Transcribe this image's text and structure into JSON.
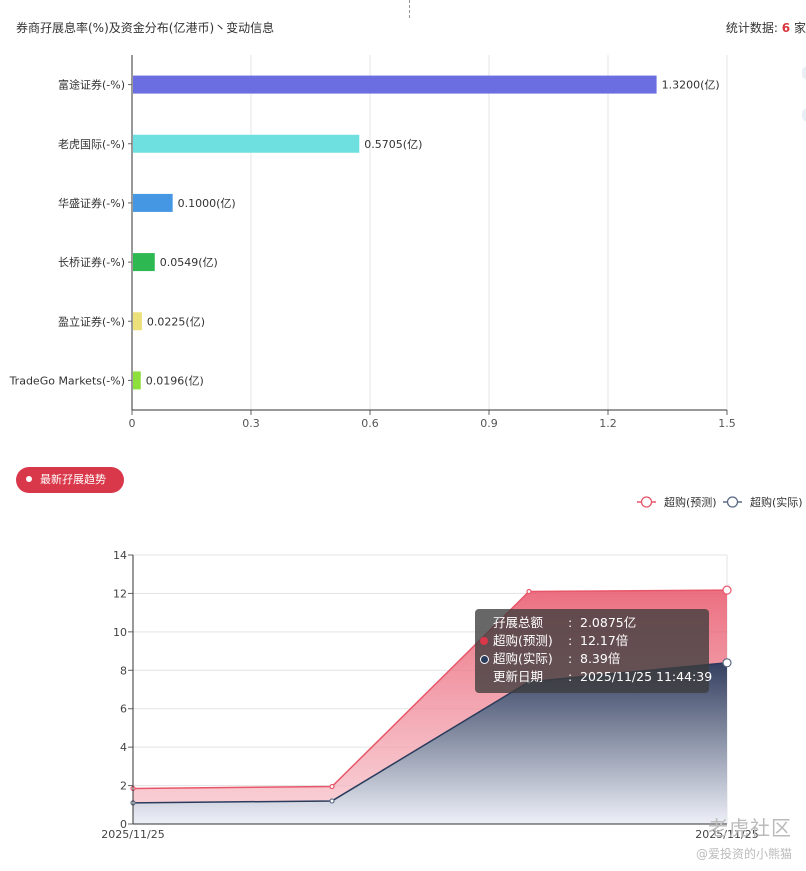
{
  "header": {
    "title": "券商孖展息率(%)及资金分布(亿港币)丶变动信息",
    "stats_prefix": "统计数据:",
    "stats_count": "6",
    "stats_suffix": "家"
  },
  "trend_badge": {
    "label": "最新孖展趋势"
  },
  "tooltip": {
    "rows": [
      {
        "key": "孖展总额",
        "value": "2.0875亿",
        "marker": ""
      },
      {
        "key": "超购(预测)",
        "value": "12.17倍",
        "marker": "#d9384a"
      },
      {
        "key": "超购(实际)",
        "value": "8.39倍",
        "marker": "#2a3b5c"
      },
      {
        "key": "更新日期",
        "value": "2025/11/25 11:44:39",
        "marker": ""
      }
    ]
  },
  "watermark": {
    "logo": "老虎社区",
    "user": "@爱投资的小熊猫"
  },
  "chart_data": [
    {
      "type": "bar",
      "orientation": "horizontal",
      "categories": [
        "富途证券(-%)",
        "老虎国际(-%)",
        "华盛证券(-%)",
        "长桥证券(-%)",
        "盈立证券(-%)",
        "TradeGo Markets(-%)"
      ],
      "values": [
        1.32,
        0.5705,
        0.1,
        0.0549,
        0.0225,
        0.0196
      ],
      "value_labels": [
        "1.3200(亿)",
        "0.5705(亿)",
        "0.1000(亿)",
        "0.0549(亿)",
        "0.0225(亿)",
        "0.0196(亿)"
      ],
      "colors": [
        "#6b6ee0",
        "#6fe0e0",
        "#4596e3",
        "#2db852",
        "#ece07a",
        "#8de03c"
      ],
      "xlim": [
        0,
        1.5
      ],
      "xticks": [
        "0",
        "0.3",
        "0.6",
        "0.9",
        "1.2",
        "1.5"
      ],
      "grid": true
    },
    {
      "type": "area",
      "x": [
        "2025/11/25",
        "",
        "",
        "2025/11/25"
      ],
      "xtick_labels": [
        "2025/11/25",
        "2025/11/25"
      ],
      "series": [
        {
          "name": "超购(预测)",
          "values": [
            1.85,
            1.95,
            12.1,
            12.17
          ],
          "color": "#e8566a"
        },
        {
          "name": "超购(实际)",
          "values": [
            1.1,
            1.2,
            7.4,
            8.39
          ],
          "color": "#2a3b5c"
        }
      ],
      "ylim": [
        0,
        14
      ],
      "yticks": [
        "0",
        "2",
        "4",
        "6",
        "8",
        "10",
        "12",
        "14"
      ],
      "legend_position": "top-right",
      "grid": true
    }
  ]
}
